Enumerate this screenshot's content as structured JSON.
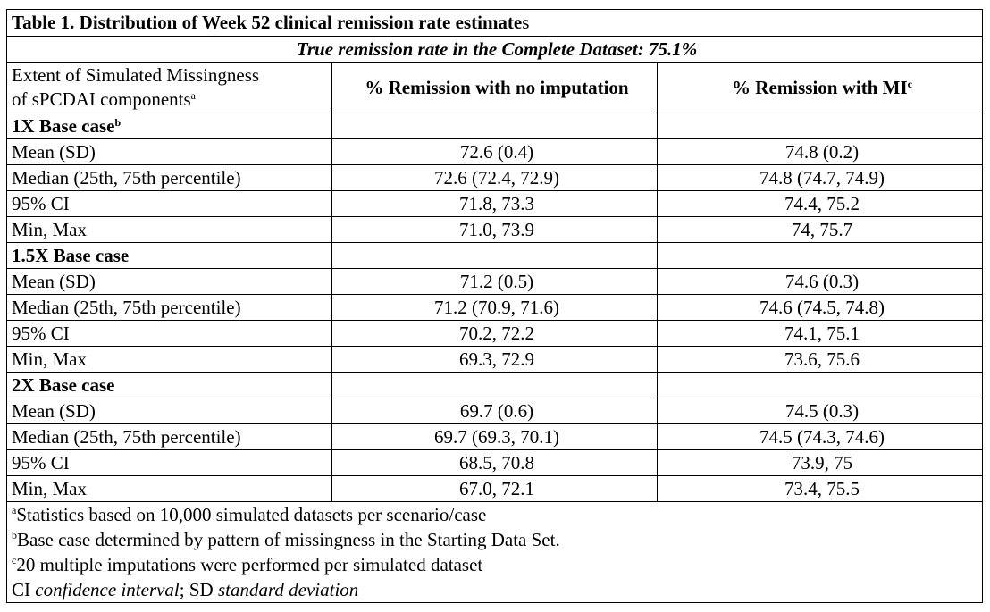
{
  "table": {
    "title_bold": "Table 1. Distribution of Week 52 clinical remission rate estimate",
    "title_tail": "s",
    "subtitle": "True remission rate in the Complete Dataset: 75.1%",
    "header": {
      "col_a_line1": "Extent of Simulated Missingness",
      "col_a_line2": "of sPCDAI components",
      "col_a_sup": "a",
      "col_b": "% Remission with no imputation",
      "col_c": "% Remission with MI",
      "col_c_sup": "c"
    },
    "sections": [
      {
        "label": "1X Base case",
        "sup": "b",
        "rows": [
          {
            "label": "Mean (SD)",
            "no_imputation": "72.6 (0.4)",
            "mi": "74.8 (0.2)"
          },
          {
            "label": "Median (25th, 75th percentile)",
            "no_imputation": "72.6 (72.4, 72.9)",
            "mi": "74.8 (74.7, 74.9)"
          },
          {
            "label": "95% CI",
            "no_imputation": "71.8, 73.3",
            "mi": "74.4, 75.2"
          },
          {
            "label": "Min, Max",
            "no_imputation": "71.0, 73.9",
            "mi": "74, 75.7"
          }
        ]
      },
      {
        "label": "1.5X Base case",
        "sup": "",
        "rows": [
          {
            "label": "Mean (SD)",
            "no_imputation": "71.2 (0.5)",
            "mi": "74.6 (0.3)"
          },
          {
            "label": "Median (25th, 75th percentile)",
            "no_imputation": "71.2 (70.9, 71.6)",
            "mi": "74.6 (74.5, 74.8)"
          },
          {
            "label": "95% CI",
            "no_imputation": "70.2, 72.2",
            "mi": "74.1, 75.1"
          },
          {
            "label": "Min, Max",
            "no_imputation": "69.3, 72.9",
            "mi": "73.6, 75.6"
          }
        ]
      },
      {
        "label": "2X Base case",
        "sup": "",
        "rows": [
          {
            "label": "Mean (SD)",
            "no_imputation": "69.7 (0.6)",
            "mi": "74.5 (0.3)"
          },
          {
            "label": "Median (25th, 75th percentile)",
            "no_imputation": "69.7 (69.3, 70.1)",
            "mi": "74.5 (74.3, 74.6)"
          },
          {
            "label": "95% CI",
            "no_imputation": "68.5, 70.8",
            "mi": "73.9, 75"
          },
          {
            "label": "Min, Max",
            "no_imputation": "67.0, 72.1",
            "mi": "73.4, 75.5"
          }
        ]
      }
    ],
    "footnotes": {
      "a_mark": "a",
      "a_text": "Statistics based on 10,000 simulated datasets per scenario/case",
      "b_mark": "b",
      "b_text": "Base case determined by pattern of missingness in the Starting Data Set.",
      "c_mark": "c",
      "c_text": "20 multiple imputations were performed per simulated dataset",
      "abbrev": {
        "ci": "CI",
        "ci_def": "confidence interval",
        "sep": "; ",
        "sd": "SD",
        "sd_def": "standard deviation"
      }
    }
  }
}
